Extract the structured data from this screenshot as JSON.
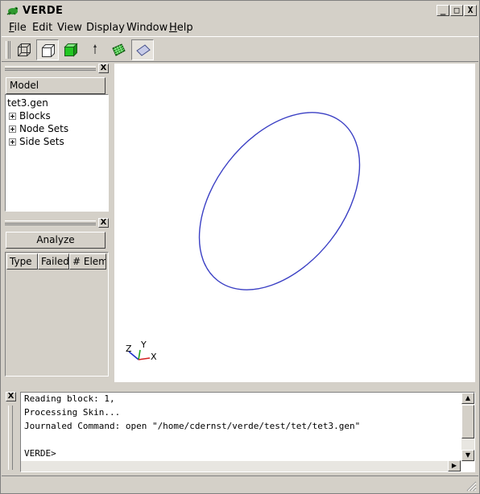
{
  "window": {
    "title": "VERDE",
    "minimize_symbol": "_",
    "maximize_symbol": "□",
    "close_symbol": "X"
  },
  "menubar": {
    "items": [
      {
        "first": "F",
        "rest": "ile"
      },
      {
        "first": "E",
        "rest": "dit"
      },
      {
        "first": "V",
        "rest": "iew"
      },
      {
        "first": "D",
        "rest": "isplay"
      },
      {
        "first": "W",
        "rest": "indow"
      },
      {
        "first": "H",
        "rest": "elp"
      }
    ]
  },
  "toolbar": {
    "icons": [
      "wireframe-cube-icon",
      "hidden-line-cube-icon",
      "solid-cube-icon",
      "arrow-up-icon",
      "mesh-grid-icon",
      "plane-icon"
    ],
    "pressed": [
      "hidden-line-cube-icon",
      "plane-icon"
    ]
  },
  "model_panel": {
    "button_label": "Model",
    "tree_root": "tet3.gen",
    "tree_items": [
      "Blocks",
      "Node Sets",
      "Side Sets"
    ],
    "close_symbol": "X"
  },
  "analyze_panel": {
    "button_label": "Analyze",
    "columns": [
      "Type",
      "Failed",
      "# Elem"
    ],
    "close_symbol": "X"
  },
  "viewport": {
    "ellipse_color": "#3a3fc4",
    "axes": {
      "x": "X",
      "y": "Y",
      "z": "Z"
    },
    "axis_colors": {
      "x": "#d42020",
      "y": "#1fa21f",
      "z": "#2030c8"
    }
  },
  "console": {
    "close_symbol": "X",
    "lines": [
      "Reading block: 1,",
      "Processing Skin...",
      "Journaled Command: open \"/home/cdernst/verde/test/tet/tet3.gen\"",
      "",
      "VERDE>"
    ]
  }
}
